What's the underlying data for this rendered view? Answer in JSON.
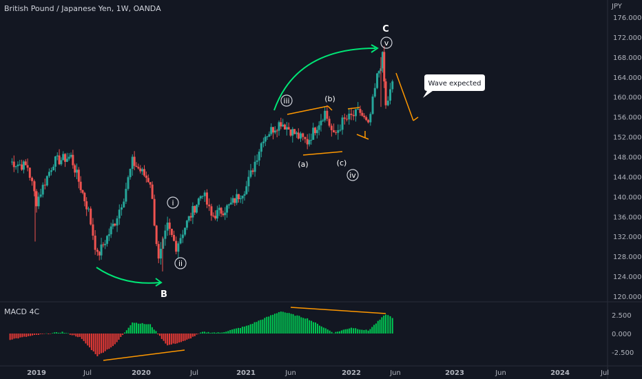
{
  "header": {
    "title": "British Pound / Japanese Yen, 1W, OANDA",
    "currency": "JPY"
  },
  "chart_data": [
    {
      "type": "candlestick",
      "title": "British Pound / Japanese Yen, 1W, OANDA",
      "ylabel": "JPY",
      "ylim": [
        118.5,
        177.5
      ],
      "yticks": [
        "176.000",
        "172.000",
        "168.000",
        "164.000",
        "160.000",
        "156.000",
        "152.000",
        "148.000",
        "144.000",
        "140.000",
        "136.000",
        "132.000",
        "128.000",
        "124.000",
        "120.000"
      ],
      "xticks": [
        "2019",
        "Jul",
        "2020",
        "Jul",
        "2021",
        "Jun",
        "2022",
        "Jun",
        "2023",
        "Jun",
        "2024",
        "Jul"
      ],
      "colors": {
        "up": "#26a69a",
        "down": "#ef5350",
        "bull": "#00c853",
        "bear": "#e53935",
        "annot": "#ff9800",
        "arrow": "#00e676"
      },
      "path": [
        {
          "d": "2018-10",
          "v": 147
        },
        {
          "d": "2018-12",
          "v": 146
        },
        {
          "d": "2019-01",
          "v": 139
        },
        {
          "d": "2019-03",
          "v": 147
        },
        {
          "d": "2019-05",
          "v": 148
        },
        {
          "d": "2019-07",
          "v": 137
        },
        {
          "d": "2019-08",
          "v": 128
        },
        {
          "d": "2019-10",
          "v": 135
        },
        {
          "d": "2019-11",
          "v": 140
        },
        {
          "d": "2019-12",
          "v": 147
        },
        {
          "d": "2020-02",
          "v": 143
        },
        {
          "d": "2020-03",
          "v": 127
        },
        {
          "d": "2020-04",
          "v": 134
        },
        {
          "d": "2020-05",
          "v": 130
        },
        {
          "d": "2020-06",
          "v": 134
        },
        {
          "d": "2020-08",
          "v": 141
        },
        {
          "d": "2020-09",
          "v": 136
        },
        {
          "d": "2020-11",
          "v": 138
        },
        {
          "d": "2021-01",
          "v": 142
        },
        {
          "d": "2021-03",
          "v": 152
        },
        {
          "d": "2021-05",
          "v": 155
        },
        {
          "d": "2021-07",
          "v": 152
        },
        {
          "d": "2021-08",
          "v": 151
        },
        {
          "d": "2021-10",
          "v": 157
        },
        {
          "d": "2021-11",
          "v": 152
        },
        {
          "d": "2021-12",
          "v": 155
        },
        {
          "d": "2022-01",
          "v": 156
        },
        {
          "d": "2022-02",
          "v": 157
        },
        {
          "d": "2022-03",
          "v": 154
        },
        {
          "d": "2022-04",
          "v": 164
        },
        {
          "d": "2022-04-20",
          "v": 168
        },
        {
          "d": "2022-05",
          "v": 158
        },
        {
          "d": "2022-06",
          "v": 164
        }
      ],
      "macd": {
        "name": "MACD 4C",
        "ylim": [
          -3.3,
          3.7
        ],
        "yticks": [
          "2.500",
          "0.000",
          "-2.500"
        ],
        "path": [
          {
            "d": "2018-10",
            "v": -0.8
          },
          {
            "d": "2019-01",
            "v": -0.2
          },
          {
            "d": "2019-04",
            "v": 0.2
          },
          {
            "d": "2019-06",
            "v": -0.5
          },
          {
            "d": "2019-08",
            "v": -3.0
          },
          {
            "d": "2019-10",
            "v": -1.5
          },
          {
            "d": "2019-12",
            "v": 1.5
          },
          {
            "d": "2020-02",
            "v": 1.2
          },
          {
            "d": "2020-04",
            "v": -1.6
          },
          {
            "d": "2020-06",
            "v": -1.0
          },
          {
            "d": "2020-08",
            "v": 0.2
          },
          {
            "d": "2020-10",
            "v": 0.1
          },
          {
            "d": "2021-01",
            "v": 1.0
          },
          {
            "d": "2021-05",
            "v": 3.0
          },
          {
            "d": "2021-08",
            "v": 2.0
          },
          {
            "d": "2021-11",
            "v": 0.1
          },
          {
            "d": "2022-01",
            "v": 0.8
          },
          {
            "d": "2022-03",
            "v": 0.4
          },
          {
            "d": "2022-05",
            "v": 2.6
          },
          {
            "d": "2022-06",
            "v": 2.0
          }
        ]
      },
      "annotations": [
        {
          "text": "B",
          "d": "2020-03",
          "v": 121.5,
          "style": "big"
        },
        {
          "text": "C",
          "d": "2022-04",
          "v": 176,
          "style": "big"
        },
        {
          "text": "i",
          "d": "2020-04",
          "v": 140,
          "style": "circle"
        },
        {
          "text": "ii",
          "d": "2020-05",
          "v": 128,
          "style": "circle"
        },
        {
          "text": "iii",
          "d": "2021-04",
          "v": 160,
          "style": "circle"
        },
        {
          "text": "iv",
          "d": "2021-12",
          "v": 144.5,
          "style": "circle"
        },
        {
          "text": "v",
          "d": "2022-04-15",
          "v": 173,
          "style": "circle"
        },
        {
          "text": "(a)",
          "d": "2021-07",
          "v": 147.5,
          "style": "plain"
        },
        {
          "text": "(b)",
          "d": "2021-10",
          "v": 161,
          "style": "plain"
        },
        {
          "text": "(c)",
          "d": "2021-12",
          "v": 147.8,
          "style": "plain"
        }
      ],
      "callout": "Wave expected"
    }
  ]
}
